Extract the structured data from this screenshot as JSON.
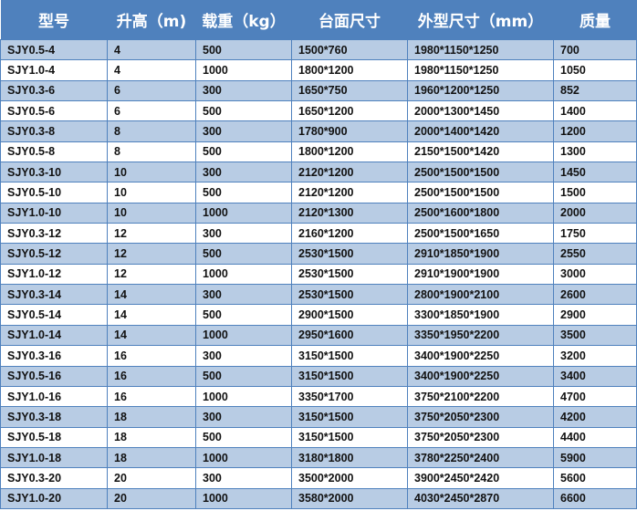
{
  "table": {
    "headers": [
      "型号",
      "升高（m)",
      "载重（kg）",
      "台面尺寸",
      "外型尺寸（mm）",
      "质量"
    ],
    "rows": [
      [
        "SJY0.5-4",
        "4",
        "500",
        "1500*760",
        "1980*1150*1250",
        "700"
      ],
      [
        "SJY1.0-4",
        "4",
        "1000",
        "1800*1200",
        "1980*1150*1250",
        "1050"
      ],
      [
        "SJY0.3-6",
        "6",
        "300",
        "1650*750",
        "1960*1200*1250",
        "852"
      ],
      [
        "SJY0.5-6",
        "6",
        "500",
        "1650*1200",
        "2000*1300*1450",
        "1400"
      ],
      [
        "SJY0.3-8",
        "8",
        "300",
        "1780*900",
        "2000*1400*1420",
        "1200"
      ],
      [
        "SJY0.5-8",
        "8",
        "500",
        "1800*1200",
        "2150*1500*1420",
        "1300"
      ],
      [
        "SJY0.3-10",
        "10",
        "300",
        "2120*1200",
        "2500*1500*1500",
        "1450"
      ],
      [
        "SJY0.5-10",
        "10",
        "500",
        "2120*1200",
        "2500*1500*1500",
        "1500"
      ],
      [
        "SJY1.0-10",
        "10",
        "1000",
        "2120*1300",
        "2500*1600*1800",
        "2000"
      ],
      [
        "SJY0.3-12",
        "12",
        "300",
        "2160*1200",
        "2500*1500*1650",
        "1750"
      ],
      [
        "SJY0.5-12",
        "12",
        "500",
        "2530*1500",
        "2910*1850*1900",
        "2550"
      ],
      [
        "SJY1.0-12",
        "12",
        "1000",
        "2530*1500",
        "2910*1900*1900",
        "3000"
      ],
      [
        "SJY0.3-14",
        "14",
        "300",
        "2530*1500",
        "2800*1900*2100",
        "2600"
      ],
      [
        "SJY0.5-14",
        "14",
        "500",
        "2900*1500",
        "3300*1850*1900",
        "2900"
      ],
      [
        "SJY1.0-14",
        "14",
        "1000",
        "2950*1600",
        "3350*1950*2200",
        "3500"
      ],
      [
        "SJY0.3-16",
        "16",
        "300",
        "3150*1500",
        "3400*1900*2250",
        "3200"
      ],
      [
        "SJY0.5-16",
        "16",
        "500",
        "3150*1500",
        "3400*1900*2250",
        "3400"
      ],
      [
        "SJY1.0-16",
        "16",
        "1000",
        "3350*1700",
        "3750*2100*2200",
        "4700"
      ],
      [
        "SJY0.3-18",
        "18",
        "300",
        "3150*1500",
        "3750*2050*2300",
        "4200"
      ],
      [
        "SJY0.5-18",
        "18",
        "500",
        "3150*1500",
        "3750*2050*2300",
        "4400"
      ],
      [
        "SJY1.0-18",
        "18",
        "1000",
        "3180*1800",
        "3780*2250*2400",
        "5900"
      ],
      [
        "SJY0.3-20",
        "20",
        "300",
        "3500*2000",
        "3900*2450*2420",
        "5600"
      ],
      [
        "SJY1.0-20",
        "20",
        "1000",
        "3580*2000",
        "4030*2450*2870",
        "6600"
      ]
    ]
  },
  "colors": {
    "header": "#4f81bd",
    "band": "#b8cce4",
    "plain": "#ffffff"
  }
}
